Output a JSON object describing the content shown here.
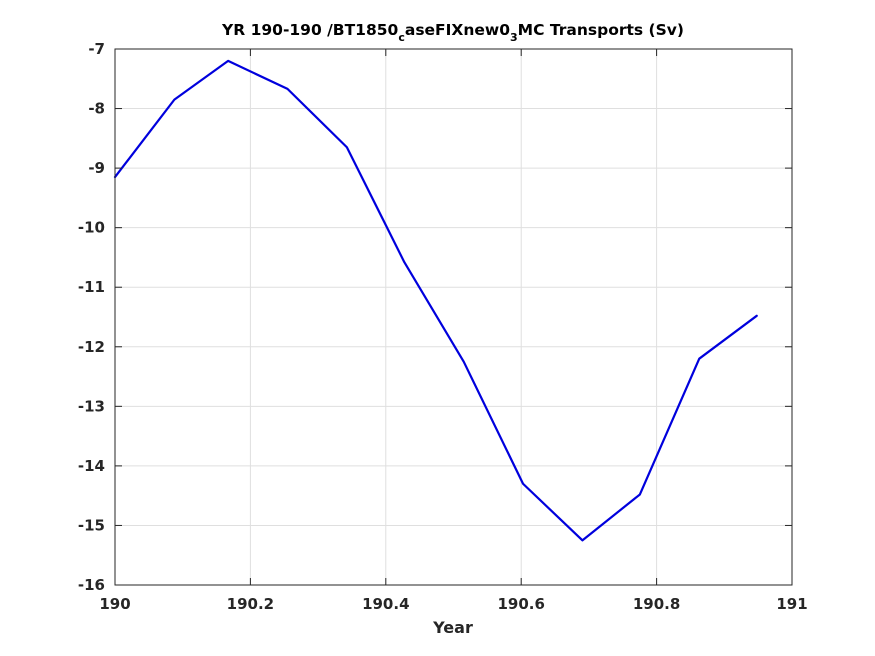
{
  "chart_data": {
    "type": "line",
    "title": {
      "prefix": "YR 190-190 /BT1850",
      "sub1": "c",
      "middle": "aseFIXnew0",
      "sub2": "3",
      "suffix": "MC Transports (Sv)"
    },
    "xlabel": "Year",
    "ylabel": "",
    "xlim": [
      190,
      191
    ],
    "ylim": [
      -16,
      -7
    ],
    "xticks": [
      190,
      190.2,
      190.4,
      190.6,
      190.8,
      191
    ],
    "xtick_labels": [
      "190",
      "190.2",
      "190.4",
      "190.6",
      "190.8",
      "191"
    ],
    "yticks": [
      -16,
      -15,
      -14,
      -13,
      -12,
      -11,
      -10,
      -9,
      -8,
      -7
    ],
    "ytick_labels": [
      "-16",
      "-15",
      "-14",
      "-13",
      "-12",
      "-11",
      "-10",
      "-9",
      "-8",
      "-7"
    ],
    "grid": true,
    "series": [
      {
        "color": "#0000dd",
        "x": [
          190.0,
          190.0877,
          190.1671,
          190.2548,
          190.3425,
          190.4274,
          190.5151,
          190.6027,
          190.6904,
          190.7753,
          190.863,
          190.9479
        ],
        "values": [
          -9.15,
          -7.85,
          -7.2,
          -7.67,
          -8.65,
          -10.58,
          -12.25,
          -14.3,
          -15.25,
          -14.48,
          -12.2,
          -11.48
        ]
      }
    ]
  }
}
